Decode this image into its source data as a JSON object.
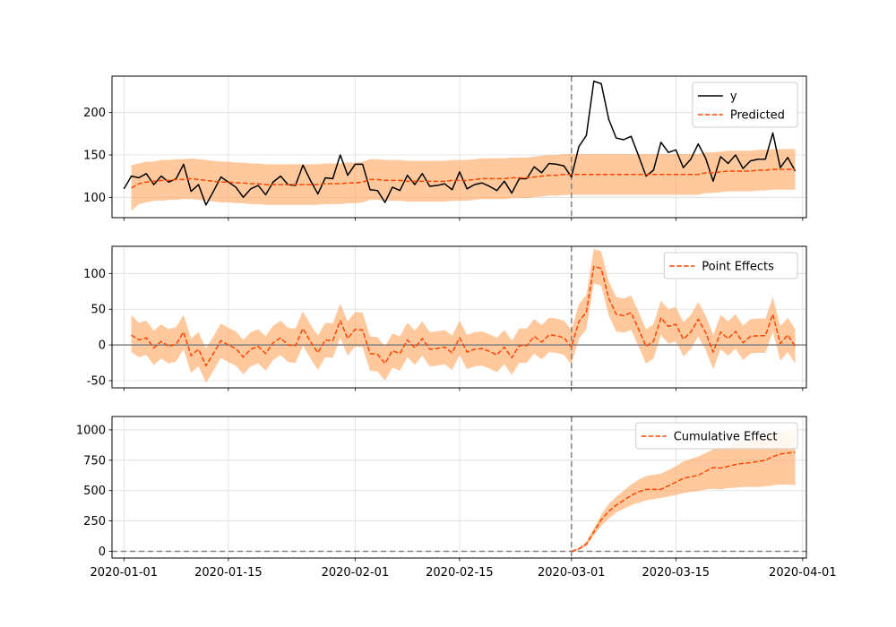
{
  "chart_data": [
    {
      "type": "line",
      "panel": "observed-vs-predicted",
      "xlabel": "",
      "ylabel": "",
      "ylim": [
        76,
        243
      ],
      "yticks": [
        100,
        150,
        200
      ],
      "intervention_date": "2020-03-01",
      "grid": true,
      "legend_position": "top-right",
      "legend": [
        "y",
        "Predicted"
      ],
      "colors": {
        "y": "#000000",
        "predicted": "#ff4500",
        "band": "#ffa45c"
      },
      "x": [
        "2020-01-01",
        "2020-01-02",
        "2020-01-03",
        "2020-01-04",
        "2020-01-05",
        "2020-01-06",
        "2020-01-07",
        "2020-01-08",
        "2020-01-09",
        "2020-01-10",
        "2020-01-11",
        "2020-01-12",
        "2020-01-13",
        "2020-01-14",
        "2020-01-15",
        "2020-01-16",
        "2020-01-17",
        "2020-01-18",
        "2020-01-19",
        "2020-01-20",
        "2020-01-21",
        "2020-01-22",
        "2020-01-23",
        "2020-01-24",
        "2020-01-25",
        "2020-01-26",
        "2020-01-27",
        "2020-01-28",
        "2020-01-29",
        "2020-01-30",
        "2020-01-31",
        "2020-02-01",
        "2020-02-02",
        "2020-02-03",
        "2020-02-04",
        "2020-02-05",
        "2020-02-06",
        "2020-02-07",
        "2020-02-08",
        "2020-02-09",
        "2020-02-10",
        "2020-02-11",
        "2020-02-12",
        "2020-02-13",
        "2020-02-14",
        "2020-02-15",
        "2020-02-16",
        "2020-02-17",
        "2020-02-18",
        "2020-02-19",
        "2020-02-20",
        "2020-02-21",
        "2020-02-22",
        "2020-02-23",
        "2020-02-24",
        "2020-02-25",
        "2020-02-26",
        "2020-02-27",
        "2020-02-28",
        "2020-02-29",
        "2020-03-01",
        "2020-03-02",
        "2020-03-03",
        "2020-03-04",
        "2020-03-05",
        "2020-03-06",
        "2020-03-07",
        "2020-03-08",
        "2020-03-09",
        "2020-03-10",
        "2020-03-11",
        "2020-03-12",
        "2020-03-13",
        "2020-03-14",
        "2020-03-15",
        "2020-03-16",
        "2020-03-17",
        "2020-03-18",
        "2020-03-19",
        "2020-03-20",
        "2020-03-21",
        "2020-03-22",
        "2020-03-23",
        "2020-03-24",
        "2020-03-25",
        "2020-03-26",
        "2020-03-27",
        "2020-03-28",
        "2020-03-29",
        "2020-03-30",
        "2020-03-31"
      ],
      "series": [
        {
          "name": "y",
          "style": "solid",
          "values": [
            110,
            125,
            123,
            128,
            115,
            125,
            118,
            122,
            139,
            107,
            115,
            91,
            107,
            124,
            118,
            112,
            100,
            110,
            114,
            103,
            118,
            125,
            115,
            114,
            138,
            120,
            104,
            123,
            122,
            150,
            126,
            139,
            139,
            109,
            108,
            94,
            112,
            108,
            126,
            115,
            128,
            113,
            114,
            116,
            109,
            130,
            110,
            115,
            117,
            113,
            108,
            119,
            105,
            122,
            122,
            136,
            129,
            140,
            139,
            137,
            124,
            160,
            173,
            237,
            234,
            192,
            170,
            168,
            172,
            149,
            125,
            132,
            165,
            153,
            156,
            135,
            145,
            163,
            146,
            119,
            148,
            140,
            150,
            134,
            143,
            145,
            145,
            176,
            135,
            147,
            131
          ]
        },
        {
          "name": "Predicted",
          "style": "dashed",
          "values": [
            null,
            111,
            116,
            118,
            119,
            120,
            120,
            121,
            121,
            122,
            121,
            120,
            119,
            118,
            118,
            117,
            117,
            116,
            116,
            115,
            115,
            115,
            115,
            115,
            115,
            115,
            115,
            116,
            116,
            116,
            117,
            117,
            118,
            121,
            121,
            120,
            120,
            120,
            119,
            119,
            119,
            119,
            119,
            119,
            120,
            120,
            120,
            121,
            122,
            122,
            122,
            122,
            123,
            123,
            123,
            124,
            125,
            126,
            126,
            127,
            127,
            127,
            127,
            127,
            127,
            127,
            127,
            127,
            127,
            127,
            127,
            127,
            127,
            127,
            127,
            127,
            127,
            127,
            129,
            129,
            130,
            131,
            131,
            131,
            131,
            132,
            132,
            133,
            133,
            133,
            133
          ]
        }
      ],
      "band": {
        "lower": [
          null,
          84,
          92,
          94,
          96,
          96,
          97,
          97,
          98,
          98,
          97,
          96,
          95,
          94,
          94,
          93,
          93,
          92,
          92,
          91,
          91,
          91,
          91,
          91,
          91,
          91,
          91,
          92,
          92,
          92,
          93,
          93,
          94,
          97,
          97,
          96,
          96,
          96,
          95,
          95,
          95,
          95,
          95,
          95,
          96,
          96,
          96,
          97,
          98,
          98,
          98,
          98,
          99,
          99,
          99,
          100,
          101,
          102,
          102,
          103,
          103,
          103,
          103,
          103,
          103,
          103,
          103,
          103,
          103,
          103,
          103,
          103,
          103,
          103,
          103,
          103,
          103,
          103,
          105,
          105,
          106,
          107,
          107,
          107,
          107,
          108,
          108,
          109,
          109,
          109,
          109
        ],
        "upper": [
          null,
          138,
          140,
          142,
          142,
          144,
          144,
          145,
          145,
          146,
          145,
          144,
          143,
          142,
          142,
          141,
          141,
          140,
          140,
          139,
          139,
          139,
          139,
          139,
          139,
          139,
          139,
          140,
          140,
          140,
          141,
          141,
          142,
          145,
          145,
          144,
          144,
          144,
          143,
          143,
          143,
          143,
          143,
          143,
          144,
          144,
          144,
          145,
          146,
          146,
          146,
          146,
          147,
          147,
          147,
          148,
          149,
          150,
          150,
          151,
          151,
          151,
          151,
          151,
          151,
          151,
          151,
          151,
          151,
          151,
          151,
          151,
          151,
          151,
          151,
          151,
          151,
          151,
          153,
          153,
          154,
          155,
          155,
          155,
          155,
          156,
          156,
          157,
          157,
          157,
          157
        ]
      }
    },
    {
      "type": "line",
      "panel": "point-effects",
      "xlabel": "",
      "ylabel": "",
      "ylim": [
        -60,
        138
      ],
      "yticks": [
        -50,
        0,
        50,
        100
      ],
      "intervention_date": "2020-03-01",
      "grid": true,
      "legend_position": "top-right",
      "legend": [
        "Point Effects"
      ],
      "colors": {
        "line": "#ff4500",
        "band": "#ffa45c",
        "zero_line": "#808080"
      },
      "series": [
        {
          "name": "Point Effects",
          "style": "dashed",
          "values": [
            null,
            14,
            7,
            10,
            -4,
            5,
            -2,
            1,
            18,
            -15,
            -6,
            -29,
            -12,
            6,
            0,
            -5,
            -17,
            -6,
            -2,
            -12,
            3,
            10,
            0,
            -1,
            23,
            5,
            -11,
            7,
            6,
            34,
            9,
            22,
            21,
            -12,
            -13,
            -26,
            -8,
            -12,
            7,
            -4,
            9,
            -6,
            -5,
            -3,
            -11,
            10,
            -10,
            -6,
            -5,
            -9,
            -14,
            -3,
            -18,
            -1,
            -1,
            12,
            4,
            14,
            13,
            10,
            -3,
            33,
            46,
            110,
            107,
            65,
            43,
            41,
            45,
            22,
            -2,
            5,
            38,
            26,
            29,
            8,
            18,
            36,
            17,
            -10,
            18,
            9,
            19,
            3,
            12,
            13,
            13,
            43,
            2,
            14,
            -2
          ]
        }
      ],
      "band": {
        "lower": [
          null,
          -10,
          -17,
          -14,
          -28,
          -19,
          -26,
          -23,
          -6,
          -39,
          -30,
          -53,
          -36,
          -18,
          -24,
          -29,
          -41,
          -30,
          -26,
          -36,
          -21,
          -14,
          -24,
          -25,
          -1,
          -19,
          -35,
          -17,
          -18,
          10,
          -15,
          -2,
          -3,
          -36,
          -37,
          -50,
          -32,
          -36,
          -17,
          -28,
          -15,
          -30,
          -29,
          -27,
          -35,
          -14,
          -34,
          -30,
          -29,
          -33,
          -38,
          -27,
          -42,
          -25,
          -25,
          -12,
          -20,
          -10,
          -11,
          -14,
          -27,
          9,
          22,
          86,
          83,
          41,
          19,
          17,
          21,
          -2,
          -26,
          -19,
          14,
          2,
          5,
          -16,
          -6,
          12,
          -7,
          -34,
          -6,
          -15,
          -5,
          -21,
          -12,
          -11,
          -11,
          19,
          -22,
          -10,
          -26
        ],
        "upper": [
          null,
          42,
          31,
          34,
          20,
          29,
          22,
          25,
          42,
          9,
          18,
          -5,
          12,
          30,
          24,
          19,
          7,
          18,
          22,
          12,
          27,
          34,
          24,
          23,
          47,
          29,
          13,
          31,
          30,
          58,
          33,
          46,
          45,
          12,
          11,
          -2,
          16,
          12,
          31,
          20,
          33,
          18,
          19,
          21,
          13,
          34,
          14,
          18,
          19,
          15,
          10,
          21,
          6,
          23,
          23,
          36,
          28,
          38,
          37,
          34,
          21,
          57,
          70,
          134,
          131,
          89,
          67,
          65,
          69,
          46,
          22,
          29,
          62,
          50,
          53,
          32,
          42,
          60,
          41,
          14,
          42,
          33,
          43,
          27,
          36,
          37,
          37,
          67,
          26,
          38,
          22
        ]
      }
    },
    {
      "type": "line",
      "panel": "cumulative-effect",
      "xlabel": "",
      "ylabel": "",
      "ylim": [
        -55,
        1110
      ],
      "yticks": [
        0,
        250,
        500,
        750,
        1000
      ],
      "intervention_date": "2020-03-01",
      "grid": true,
      "legend_position": "top-right",
      "legend": [
        "Cumulative Effect"
      ],
      "colors": {
        "line": "#ff4500",
        "band": "#ffa45c",
        "zero_line": "#808080"
      },
      "x_ticks": [
        "2020-01-01",
        "2020-01-15",
        "2020-02-01",
        "2020-02-15",
        "2020-03-01",
        "2020-03-15",
        "2020-04-01"
      ],
      "series": [
        {
          "name": "Cumulative Effect",
          "style": "dashed",
          "values": [
            null,
            null,
            null,
            null,
            null,
            null,
            null,
            null,
            null,
            null,
            null,
            null,
            null,
            null,
            null,
            null,
            null,
            null,
            null,
            null,
            null,
            null,
            null,
            null,
            null,
            null,
            null,
            null,
            null,
            null,
            null,
            null,
            null,
            null,
            null,
            null,
            null,
            null,
            null,
            null,
            null,
            null,
            null,
            null,
            null,
            null,
            null,
            null,
            null,
            null,
            null,
            null,
            null,
            null,
            null,
            null,
            null,
            null,
            null,
            null,
            0,
            20,
            60,
            160,
            260,
            330,
            380,
            420,
            460,
            490,
            510,
            510,
            510,
            540,
            570,
            600,
            615,
            625,
            660,
            690,
            685,
            700,
            715,
            725,
            730,
            740,
            750,
            780,
            800,
            810,
            815
          ]
        }
      ],
      "band": {
        "lower": [
          null,
          null,
          null,
          null,
          null,
          null,
          null,
          null,
          null,
          null,
          null,
          null,
          null,
          null,
          null,
          null,
          null,
          null,
          null,
          null,
          null,
          null,
          null,
          null,
          null,
          null,
          null,
          null,
          null,
          null,
          null,
          null,
          null,
          null,
          null,
          null,
          null,
          null,
          null,
          null,
          null,
          null,
          null,
          null,
          null,
          null,
          null,
          null,
          null,
          null,
          null,
          null,
          null,
          null,
          null,
          null,
          null,
          null,
          null,
          null,
          -5,
          12,
          45,
          130,
          210,
          270,
          320,
          350,
          380,
          400,
          420,
          430,
          440,
          450,
          465,
          480,
          490,
          495,
          510,
          515,
          510,
          520,
          525,
          530,
          530,
          530,
          535,
          545,
          550,
          550,
          545
        ],
        "upper": [
          null,
          null,
          null,
          null,
          null,
          null,
          null,
          null,
          null,
          null,
          null,
          null,
          null,
          null,
          null,
          null,
          null,
          null,
          null,
          null,
          null,
          null,
          null,
          null,
          null,
          null,
          null,
          null,
          null,
          null,
          null,
          null,
          null,
          null,
          null,
          null,
          null,
          null,
          null,
          null,
          null,
          null,
          null,
          null,
          null,
          null,
          null,
          null,
          null,
          null,
          null,
          null,
          null,
          null,
          null,
          null,
          null,
          null,
          null,
          null,
          5,
          30,
          80,
          190,
          300,
          390,
          450,
          500,
          550,
          590,
          620,
          630,
          640,
          670,
          700,
          740,
          760,
          780,
          810,
          840,
          850,
          870,
          890,
          900,
          910,
          920,
          940,
          960,
          980,
          990,
          995
        ]
      }
    }
  ]
}
